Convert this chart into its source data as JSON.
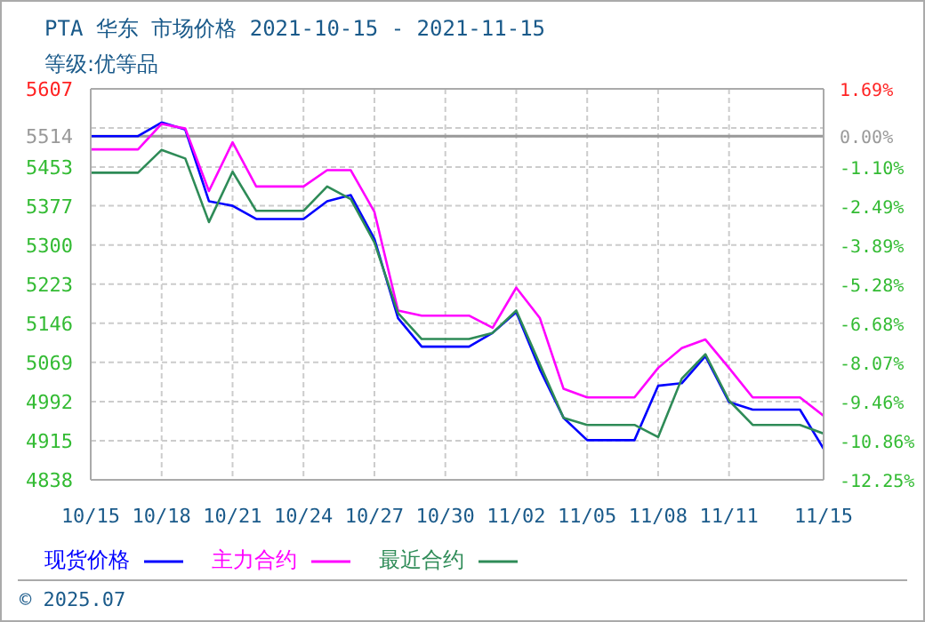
{
  "chart_data": {
    "type": "line",
    "title": "PTA 华东 市场价格 2021-10-15 - 2021-11-15",
    "subtitle": "等级:优等品",
    "x": [
      "2021-10-15",
      "2021-10-16",
      "2021-10-17",
      "2021-10-18",
      "2021-10-19",
      "2021-10-20",
      "2021-10-21",
      "2021-10-22",
      "2021-10-23",
      "2021-10-24",
      "2021-10-25",
      "2021-10-26",
      "2021-10-27",
      "2021-10-28",
      "2021-10-29",
      "2021-10-30",
      "2021-10-31",
      "2021-11-01",
      "2021-11-02",
      "2021-11-03",
      "2021-11-04",
      "2021-11-05",
      "2021-11-06",
      "2021-11-07",
      "2021-11-08",
      "2021-11-09",
      "2021-11-10",
      "2021-11-11",
      "2021-11-12",
      "2021-11-13",
      "2021-11-14",
      "2021-11-15"
    ],
    "series": [
      {
        "name": "现货价格",
        "color": "#0000ff",
        "values": [
          5514,
          5514,
          5514,
          5541,
          5527,
          5386,
          5377,
          5351,
          5351,
          5351,
          5386,
          5398,
          5312,
          5156,
          5100,
          5100,
          5100,
          5127,
          5168,
          5055,
          4960,
          4916,
          4916,
          4916,
          5023,
          5028,
          5081,
          4991,
          4976,
          4976,
          4976,
          4899
        ]
      },
      {
        "name": "主力合约",
        "color": "#ff00ff",
        "values": [
          5488,
          5488,
          5488,
          5538,
          5529,
          5406,
          5502,
          5415,
          5415,
          5415,
          5447,
          5447,
          5365,
          5171,
          5161,
          5161,
          5161,
          5137,
          5216,
          5156,
          5017,
          5000,
          5000,
          5000,
          5058,
          5097,
          5114,
          5058,
          5000,
          5000,
          5000,
          4964
        ]
      },
      {
        "name": "最近合约",
        "color": "#2e8b57",
        "values": [
          5442,
          5442,
          5442,
          5487,
          5470,
          5345,
          5444,
          5367,
          5367,
          5367,
          5415,
          5390,
          5305,
          5166,
          5115,
          5115,
          5115,
          5127,
          5171,
          5065,
          4960,
          4946,
          4946,
          4946,
          4922,
          5037,
          5085,
          4994,
          4946,
          4946,
          4946,
          4929
        ]
      }
    ],
    "xlim": [
      "2021-10-15",
      "2021-11-15"
    ],
    "xticks": [
      {
        "value": "2021-10-15",
        "label": "10/15"
      },
      {
        "value": "2021-10-18",
        "label": "10/18"
      },
      {
        "value": "2021-10-21",
        "label": "10/21"
      },
      {
        "value": "2021-10-24",
        "label": "10/24"
      },
      {
        "value": "2021-10-27",
        "label": "10/27"
      },
      {
        "value": "2021-10-30",
        "label": "10/30"
      },
      {
        "value": "2021-11-02",
        "label": "11/02"
      },
      {
        "value": "2021-11-05",
        "label": "11/05"
      },
      {
        "value": "2021-11-08",
        "label": "11/08"
      },
      {
        "value": "2021-11-11",
        "label": "11/11"
      },
      {
        "value": "2021-11-15",
        "label": "11/15"
      }
    ],
    "ylim": [
      4838,
      5607
    ],
    "yticks": [
      4838,
      4915,
      4992,
      5069,
      5146,
      5223,
      5300,
      5377,
      5453,
      5514,
      {
        "value": 5530,
        "label": null
      },
      5607
    ],
    "y2lim": [
      -12.25,
      1.69
    ],
    "y2ticks": [
      {
        "value": -12.25,
        "label": "-12.25%"
      },
      {
        "value": -10.86,
        "label": "-10.86%"
      },
      {
        "value": -9.46,
        "label": "-9.46%"
      },
      {
        "value": -8.07,
        "label": "-8.07%"
      },
      {
        "value": -6.68,
        "label": "-6.68%"
      },
      {
        "value": -5.28,
        "label": "-5.28%"
      },
      {
        "value": -3.89,
        "label": "-3.89%"
      },
      {
        "value": -2.49,
        "label": "-2.49%"
      },
      {
        "value": -1.1,
        "label": "-1.10%"
      },
      {
        "value": 0,
        "label": "0.00%"
      },
      {
        "value": 1.69,
        "label": "1.69%"
      }
    ],
    "ref_lines": [
      {
        "axis": "y",
        "value": 5514,
        "color": "#999999"
      }
    ],
    "grid": true,
    "legend": "bottom",
    "marker": "none",
    "line_style": "solid",
    "annotations": [
      "© 2025.07"
    ]
  }
}
